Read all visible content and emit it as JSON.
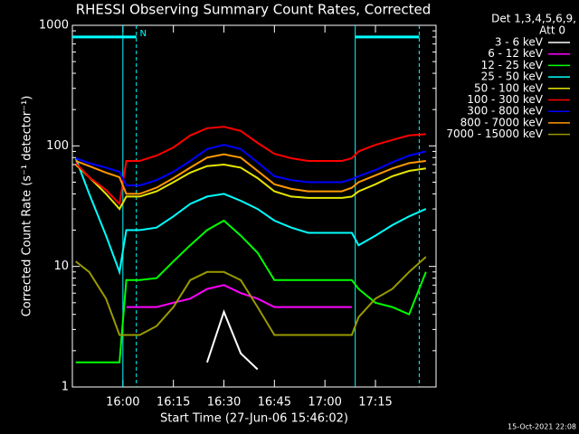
{
  "chart_data": {
    "type": "line",
    "log_y": true,
    "title": "RHESSI Observing Summary Count Rates, Corrected",
    "x_label": "Start Time (27-Jun-06 15:46:02)",
    "y_label": "Corrected Count Rate (s⁻¹ detector⁻¹)",
    "legend_header": [
      "Det 1,3,4,5,6,9,",
      "Att 0"
    ],
    "footer": "15-Oct-2021 22:08",
    "x": [
      "15:46",
      "15:50",
      "15:55",
      "15:59",
      "16:01",
      "16:05",
      "16:10",
      "16:15",
      "16:20",
      "16:25",
      "16:30",
      "16:35",
      "16:40",
      "16:45",
      "16:50",
      "16:55",
      "17:00",
      "17:05",
      "17:08",
      "17:10",
      "17:15",
      "17:20",
      "17:25",
      "17:30"
    ],
    "xlim": [
      "15:45",
      "17:33"
    ],
    "xticks": [
      "16:00",
      "16:15",
      "16:30",
      "16:45",
      "17:00",
      "17:15"
    ],
    "ylim": [
      1,
      1000
    ],
    "yticks": [
      1,
      10,
      100,
      1000
    ],
    "markers": {
      "color": "#00ffff",
      "solid": [
        "16:00",
        "17:09"
      ],
      "dashed": [
        "16:04",
        "17:28"
      ],
      "bars": [
        [
          "15:45",
          "16:04"
        ],
        [
          "17:09",
          "17:28"
        ]
      ],
      "bar_level": 800
    },
    "annotations": [
      {
        "text": "N",
        "x": "16:05",
        "y": 800
      }
    ],
    "series": [
      {
        "name": "3 - 6 keV",
        "color": "#ffffff",
        "values": [
          null,
          null,
          null,
          null,
          null,
          null,
          null,
          null,
          null,
          1.6,
          4.2,
          1.9,
          1.4,
          null,
          null,
          null,
          null,
          null,
          null,
          null,
          null,
          null,
          null,
          null
        ]
      },
      {
        "name": "6 - 12 keV",
        "color": "#ff00ff",
        "values": [
          null,
          null,
          null,
          null,
          4.6,
          4.6,
          4.6,
          5,
          5.4,
          6.5,
          7,
          6,
          5.4,
          4.6,
          4.6,
          4.6,
          4.6,
          4.6,
          4.6,
          null,
          null,
          null,
          null,
          null
        ]
      },
      {
        "name": "12 - 25 keV",
        "color": "#00ff00",
        "values": [
          1.6,
          1.6,
          1.6,
          1.6,
          7.7,
          7.7,
          8,
          11,
          15,
          20,
          24,
          18,
          13,
          7.7,
          7.7,
          7.7,
          7.7,
          7.7,
          7.7,
          6.5,
          5,
          4.6,
          4,
          9
        ]
      },
      {
        "name": "25 - 50 keV",
        "color": "#00ffff",
        "values": [
          79,
          40,
          18,
          9,
          20,
          20,
          21,
          26,
          33,
          38,
          40,
          35,
          30,
          24,
          21,
          19,
          19,
          19,
          19,
          15,
          18,
          22,
          26,
          30
        ]
      },
      {
        "name": "50 - 100 keV",
        "color": "#e6e600",
        "values": [
          70,
          55,
          40,
          30,
          38,
          38,
          42,
          50,
          60,
          68,
          70,
          66,
          54,
          42,
          38,
          37,
          37,
          37,
          38,
          42,
          48,
          56,
          62,
          65
        ]
      },
      {
        "name": "100 - 300 keV",
        "color": "#ff0000",
        "values": [
          72,
          55,
          43,
          33,
          75,
          75,
          83,
          97,
          122,
          140,
          144,
          133,
          106,
          86,
          79,
          75,
          75,
          75,
          79,
          90,
          102,
          112,
          122,
          125
        ]
      },
      {
        "name": "300 - 800 keV",
        "color": "#0000ff",
        "values": [
          79,
          72,
          66,
          61,
          47,
          47,
          52,
          61,
          75,
          94,
          102,
          94,
          73,
          56,
          52,
          50,
          50,
          50,
          53,
          56,
          63,
          73,
          83,
          90
        ]
      },
      {
        "name": "800 - 7000 keV",
        "color": "#ff9900",
        "values": [
          75,
          68,
          60,
          55,
          40,
          40,
          45,
          54,
          66,
          80,
          85,
          80,
          62,
          48,
          44,
          42,
          42,
          42,
          45,
          50,
          57,
          65,
          72,
          75
        ]
      },
      {
        "name": "7000 - 15000 keV",
        "color": "#999900",
        "values": [
          11,
          9,
          5.4,
          2.7,
          2.7,
          2.7,
          3.2,
          4.6,
          7.7,
          9,
          9,
          7.7,
          4.6,
          2.7,
          2.7,
          2.7,
          2.7,
          2.7,
          2.7,
          3.8,
          5.4,
          6.5,
          9,
          12
        ]
      }
    ]
  }
}
